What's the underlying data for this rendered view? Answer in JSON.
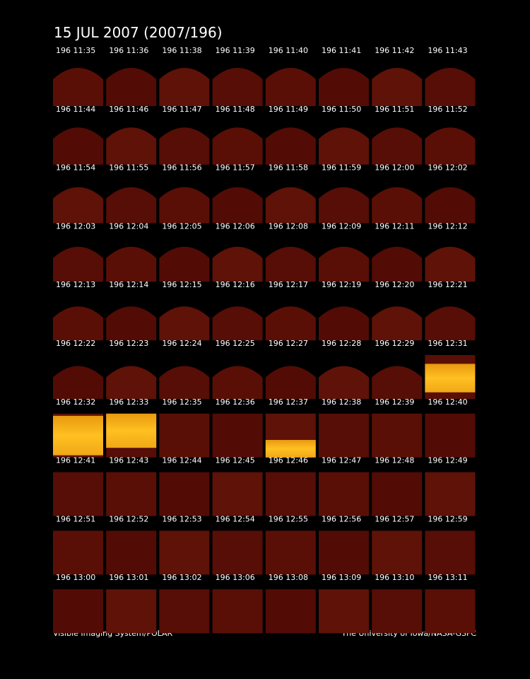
{
  "header": {
    "title": "15 JUL 2007  (2007/196)"
  },
  "panels": {
    "rows": [
      [
        "196 11:35",
        "196 11:36",
        "196 11:38",
        "196 11:39",
        "196 11:40",
        "196 11:41",
        "196 11:42",
        "196 11:43"
      ],
      [
        "196 11:44",
        "196 11:46",
        "196 11:47",
        "196 11:48",
        "196 11:49",
        "196 11:50",
        "196 11:51",
        "196 11:52"
      ],
      [
        "196 11:54",
        "196 11:55",
        "196 11:56",
        "196 11:57",
        "196 11:58",
        "196 11:59",
        "196 12:00",
        "196 12:02"
      ],
      [
        "196 12:03",
        "196 12:04",
        "196 12:05",
        "196 12:06",
        "196 12:08",
        "196 12:09",
        "196 12:11",
        "196 12:12"
      ],
      [
        "196 12:13",
        "196 12:14",
        "196 12:15",
        "196 12:16",
        "196 12:17",
        "196 12:19",
        "196 12:20",
        "196 12:21"
      ],
      [
        "196 12:22",
        "196 12:23",
        "196 12:24",
        "196 12:25",
        "196 12:27",
        "196 12:28",
        "196 12:29",
        "196 12:31"
      ],
      [
        "196 12:32",
        "196 12:33",
        "196 12:35",
        "196 12:36",
        "196 12:37",
        "196 12:38",
        "196 12:39",
        "196 12:40"
      ],
      [
        "196 12:41",
        "196 12:43",
        "196 12:44",
        "196 12:45",
        "196 12:46",
        "196 12:47",
        "196 12:48",
        "196 12:49"
      ],
      [
        "196 12:51",
        "196 12:52",
        "196 12:53",
        "196 12:54",
        "196 12:55",
        "196 12:56",
        "196 12:57",
        "196 12:59"
      ],
      [
        "196 13:00",
        "196 13:01",
        "196 13:02",
        "196 13:06",
        "196 13:08",
        "196 13:09",
        "196 13:10",
        "196 13:11"
      ]
    ]
  },
  "footer": {
    "left": "Visible Imaging System/POLAR",
    "right": "The University of Iowa/NASA-GSFC"
  }
}
